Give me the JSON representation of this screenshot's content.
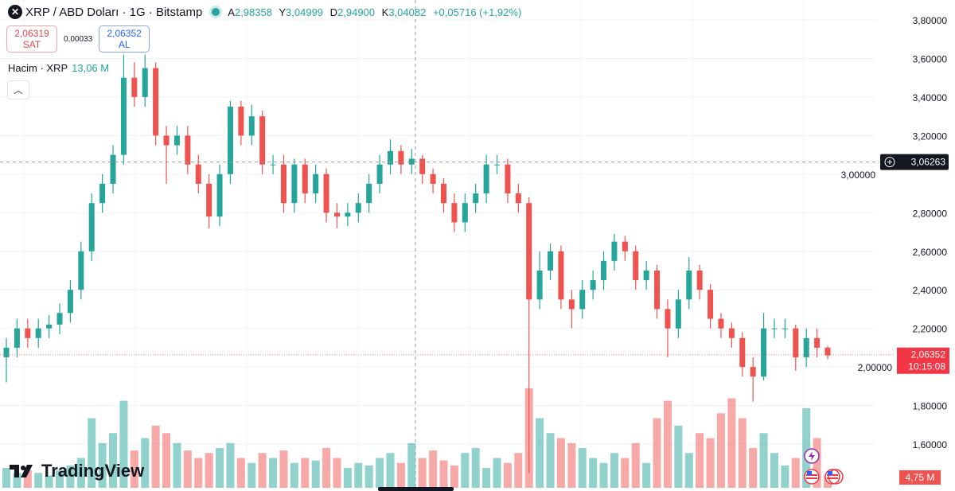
{
  "header": {
    "symbol_icon": "xrp-logo-icon",
    "title": "XRP / ABD Doları · 1G · Bitstamp",
    "status_color": "#26a69a",
    "ohlc": {
      "open_label": "A",
      "open": "2,98358",
      "high_label": "Y",
      "high": "3,04999",
      "low_label": "D",
      "low": "2,94900",
      "close_label": "K",
      "close": "3,04082",
      "change": "+0,05716 (+1,92%)"
    }
  },
  "trade": {
    "sell_price": "2,06319",
    "sell_label": "SAT",
    "spread": "0,00033",
    "buy_price": "2,06352",
    "buy_label": "AL"
  },
  "volume_legend": {
    "label": "Hacim · XRP",
    "value": "13,06 M"
  },
  "brand": "TradingView",
  "price_axis": {
    "crosshair_price": "3,06263",
    "last_price": "2,06352",
    "countdown": "10:15:08",
    "last_volume": "4,75 M"
  },
  "colors": {
    "up": "#26a69a",
    "down": "#ef5350",
    "crosshair_label": "#131722",
    "last_price": "#f23645"
  },
  "chart_data": {
    "type": "candlestick",
    "ylim": [
      1.4,
      3.9
    ],
    "yticks": [
      "3,80000",
      "3,60000",
      "3,40000",
      "3,20000",
      "3,00000",
      "2,80000",
      "2,60000",
      "2,40000",
      "2,20000",
      "2,00000",
      "1,80000",
      "1,60000"
    ],
    "ytick_values": [
      3.8,
      3.6,
      3.4,
      3.2,
      3.0,
      2.8,
      2.6,
      2.4,
      2.2,
      2.0,
      1.8,
      1.6
    ],
    "grid": true,
    "crosshair_price": 3.06263,
    "last_price": 2.06352,
    "open": [
      2.05,
      2.1,
      2.2,
      2.15,
      2.2,
      2.22,
      2.28,
      2.4,
      2.6,
      2.85,
      2.95,
      3.1,
      3.5,
      3.4,
      3.55,
      3.2,
      3.15,
      3.2,
      3.05,
      2.95,
      2.78,
      3.0,
      3.35,
      3.2,
      3.3,
      3.05,
      3.05,
      2.85,
      3.05,
      2.9,
      3.0,
      2.8,
      2.78,
      2.8,
      2.85,
      2.95,
      3.05,
      3.12,
      3.05,
      3.08,
      3.0,
      2.95,
      2.85,
      2.75,
      2.85,
      2.9,
      3.05,
      3.05,
      2.9,
      2.85,
      2.35,
      2.5,
      2.6,
      2.35,
      2.3,
      2.4,
      2.45,
      2.55,
      2.65,
      2.6,
      2.45,
      2.5,
      2.3,
      2.2,
      2.35,
      2.5,
      2.4,
      2.25,
      2.2,
      2.15,
      2.0,
      1.95,
      2.2,
      2.2,
      2.2,
      2.05,
      2.15,
      2.1
    ],
    "high": [
      2.15,
      2.25,
      2.25,
      2.25,
      2.27,
      2.33,
      2.45,
      2.65,
      2.9,
      3.0,
      3.15,
      3.62,
      3.58,
      3.62,
      3.58,
      3.25,
      3.25,
      3.25,
      3.1,
      3.0,
      3.05,
      3.38,
      3.38,
      3.36,
      3.33,
      3.1,
      3.1,
      3.08,
      3.08,
      3.05,
      3.03,
      2.85,
      2.85,
      2.9,
      3.0,
      3.1,
      3.18,
      3.15,
      3.13,
      3.1,
      3.03,
      2.98,
      2.9,
      2.9,
      2.95,
      3.1,
      3.1,
      3.08,
      2.95,
      2.88,
      2.6,
      2.64,
      2.63,
      2.4,
      2.45,
      2.5,
      2.6,
      2.69,
      2.68,
      2.63,
      2.55,
      2.53,
      2.35,
      2.4,
      2.57,
      2.53,
      2.43,
      2.28,
      2.23,
      2.18,
      2.05,
      2.28,
      2.25,
      2.25,
      2.22,
      2.2,
      2.2,
      2.11
    ],
    "low": [
      1.92,
      2.05,
      2.1,
      2.1,
      2.15,
      2.17,
      2.23,
      2.35,
      2.55,
      2.8,
      2.9,
      3.05,
      3.35,
      3.35,
      3.15,
      2.95,
      3.1,
      3.0,
      2.9,
      2.72,
      2.73,
      2.95,
      3.15,
      3.15,
      3.0,
      3.0,
      2.8,
      2.8,
      2.85,
      2.85,
      2.75,
      2.72,
      2.73,
      2.75,
      2.8,
      2.9,
      3.0,
      3.0,
      3.0,
      2.95,
      2.9,
      2.8,
      2.7,
      2.7,
      2.8,
      2.85,
      3.0,
      2.85,
      2.8,
      1.45,
      2.3,
      2.45,
      2.3,
      2.2,
      2.25,
      2.35,
      2.4,
      2.5,
      2.55,
      2.4,
      2.4,
      2.25,
      2.05,
      2.15,
      2.3,
      2.35,
      2.2,
      2.15,
      2.1,
      1.95,
      1.82,
      1.93,
      2.15,
      2.15,
      1.98,
      2.0,
      2.05,
      2.04
    ],
    "close": [
      2.1,
      2.2,
      2.15,
      2.2,
      2.22,
      2.28,
      2.4,
      2.6,
      2.85,
      2.95,
      3.1,
      3.5,
      3.4,
      3.55,
      3.2,
      3.15,
      3.2,
      3.05,
      2.95,
      2.78,
      3.0,
      3.35,
      3.2,
      3.3,
      3.05,
      3.05,
      2.85,
      3.05,
      2.9,
      3.0,
      2.8,
      2.78,
      2.8,
      2.85,
      2.95,
      3.05,
      3.12,
      3.05,
      3.08,
      3.0,
      2.95,
      2.85,
      2.75,
      2.85,
      2.9,
      3.05,
      3.05,
      2.9,
      2.85,
      2.35,
      2.5,
      2.6,
      2.35,
      2.3,
      2.4,
      2.45,
      2.55,
      2.65,
      2.6,
      2.45,
      2.5,
      2.3,
      2.2,
      2.35,
      2.5,
      2.4,
      2.25,
      2.2,
      2.15,
      2.0,
      1.95,
      2.2,
      2.2,
      2.2,
      2.05,
      2.15,
      2.1,
      2.06
    ],
    "volume_m": [
      8,
      6,
      7,
      6,
      5,
      7,
      9,
      12,
      28,
      18,
      22,
      35,
      15,
      20,
      25,
      22,
      18,
      15,
      12,
      14,
      16,
      18,
      12,
      10,
      14,
      12,
      15,
      10,
      12,
      11,
      16,
      12,
      8,
      10,
      9,
      12,
      14,
      10,
      18,
      12,
      15,
      11,
      9,
      14,
      16,
      8,
      12,
      10,
      14,
      40,
      28,
      22,
      20,
      18,
      16,
      12,
      10,
      14,
      12,
      18,
      10,
      28,
      35,
      25,
      14,
      22,
      20,
      30,
      36,
      28,
      16,
      22,
      14,
      9,
      12,
      32,
      20,
      4.75
    ]
  }
}
